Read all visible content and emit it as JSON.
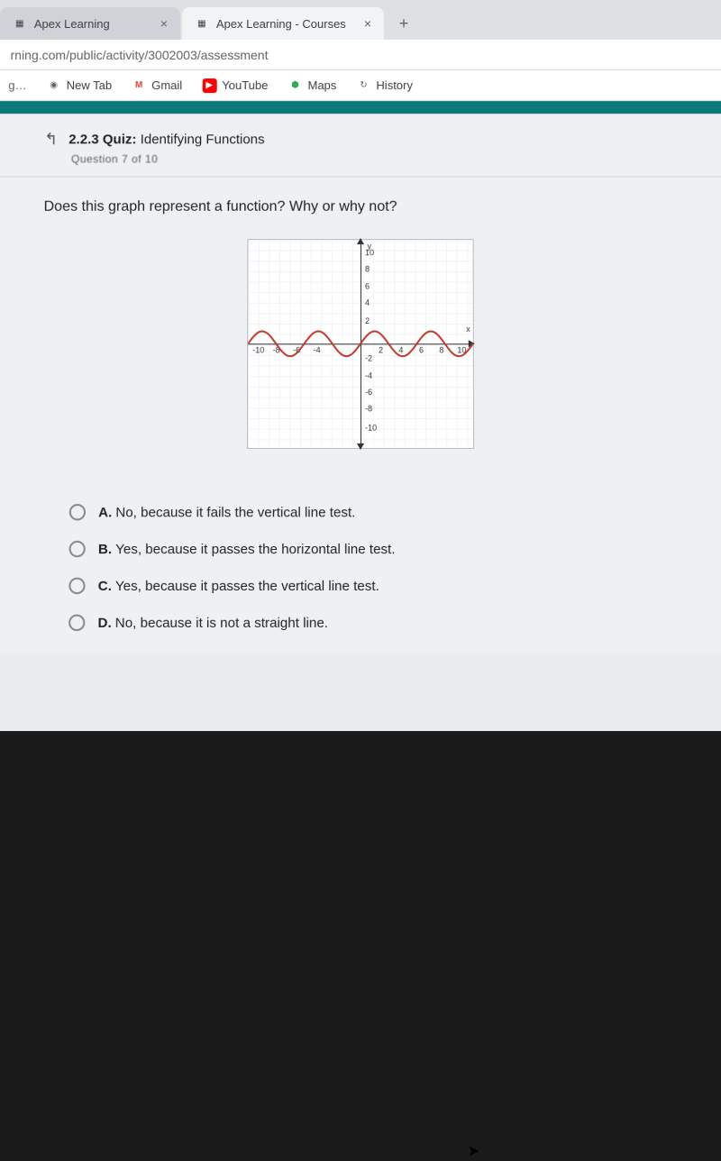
{
  "browser": {
    "tabs": [
      {
        "title": "Apex Learning",
        "active": false
      },
      {
        "title": "Apex Learning - Courses",
        "active": true
      }
    ],
    "new_tab_glyph": "+",
    "close_glyph": "×",
    "url_fragment": "rning.com/public/activity/3002003/assessment"
  },
  "bookmarks": [
    {
      "label": "New Tab",
      "icon_bg": "#ffffff",
      "icon_fg": "#5f6368",
      "glyph": "◌"
    },
    {
      "label": "Gmail",
      "icon_bg": "#ffffff",
      "icon_fg": "#ea4335",
      "glyph": "M"
    },
    {
      "label": "YouTube",
      "icon_bg": "#ff0000",
      "icon_fg": "#ffffff",
      "glyph": "▶"
    },
    {
      "label": "Maps",
      "icon_bg": "#ffffff",
      "icon_fg": "#34a853",
      "glyph": "⬢"
    },
    {
      "label": "History",
      "icon_bg": "#ffffff",
      "icon_fg": "#5f6368",
      "glyph": "↻"
    }
  ],
  "quiz": {
    "back_glyph": "↥",
    "crumb_prefix": "2.2.3",
    "crumb_label": "Quiz:",
    "crumb_title": "Identifying Functions",
    "subline": "Question 7 of 10",
    "question": "Does this graph represent a function? Why or why not?",
    "choices": [
      {
        "letter": "A.",
        "text": "No, because it fails the vertical line test."
      },
      {
        "letter": "B.",
        "text": "Yes, because it passes the horizontal line test."
      },
      {
        "letter": "C.",
        "text": "Yes, because it passes the vertical line test."
      },
      {
        "letter": "D.",
        "text": "No, because it is not a straight line."
      }
    ]
  },
  "graph": {
    "type": "line",
    "xlim": [
      -10,
      10
    ],
    "ylim": [
      -10,
      10
    ],
    "ytick_labels_pos": [
      "10",
      "8",
      "6",
      "4",
      "2"
    ],
    "ytick_labels_neg": [
      "-2",
      "-4",
      "-6",
      "-8",
      "-10"
    ],
    "xtick_labels_neg": [
      "-10",
      "-8",
      "-6",
      "-4"
    ],
    "xtick_labels_pos": [
      "2",
      "4",
      "6",
      "8",
      "10"
    ],
    "axis_label_y": "y",
    "axis_label_x": "x",
    "curve_color": "#c0392b",
    "curve_width": 2,
    "axis_color": "#333333",
    "grid_color": "#f2f4f6",
    "background_color": "#ffffff",
    "border_color": "#b7bcc2",
    "amplitude_units": 1.2,
    "period_units": 5,
    "vertical_offset_units": 0
  },
  "colors": {
    "page_bg": "#eef1f3",
    "bar_accent": "#0d7a7a"
  }
}
